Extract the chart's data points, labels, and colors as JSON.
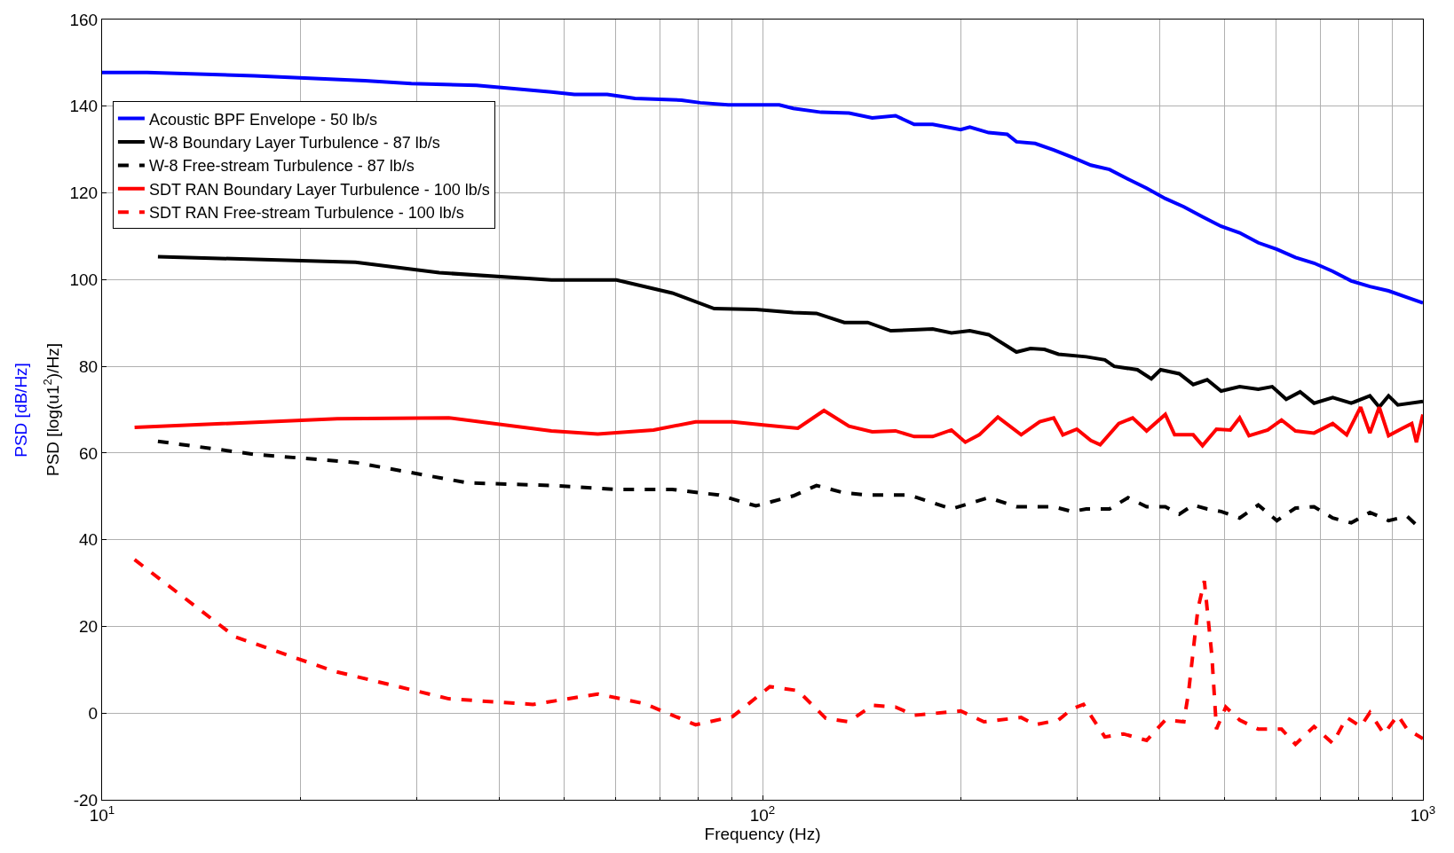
{
  "chart_data": {
    "type": "line",
    "xlabel": "Frequency (Hz)",
    "ylabel": "PSD [log(u1$^{2}$)/Hz]",
    "annotations": [
      "PSD [dB/Hz]"
    ],
    "log": "x",
    "grid": true,
    "legend": "top left",
    "marker": "none",
    "xlim": [
      10,
      1000
    ],
    "xticks": [
      {
        "value": 10,
        "label": "10$^{1}$"
      },
      {
        "value": 100,
        "label": "10$^{2}$"
      },
      {
        "value": 1000,
        "label": "10$^{3}$"
      }
    ],
    "ylim": [
      -20,
      160
    ],
    "yticks": [
      -20,
      0,
      20,
      40,
      60,
      80,
      100,
      120,
      140,
      160
    ],
    "series": [
      {
        "name": "Acoustic BPF Envelope - 50 lb/s",
        "color": "#0000ff",
        "line_style": "solid",
        "x": [
          10,
          11.7,
          17,
          25,
          29.4,
          36.9,
          47.9,
          51.9,
          58.2,
          64.1,
          75.4,
          80.5,
          88.7,
          106,
          111.3,
          122.7,
          135.2,
          146.6,
          159,
          169.7,
          181,
          199.5,
          206,
          220,
          234.7,
          242.4,
          258.7,
          276,
          294.4,
          314.2,
          335.3,
          357.7,
          381.6,
          407.3,
          434.5,
          463.7,
          494.8,
          527.8,
          563.3,
          601,
          641.2,
          684.2,
          730.2,
          778.9,
          831.2,
          887.1,
          946.2,
          1000
        ],
        "values": [
          147.8,
          147.8,
          147,
          145.9,
          145.2,
          144.8,
          143.3,
          142.7,
          142.7,
          141.8,
          141.4,
          140.8,
          140.3,
          140.3,
          139.5,
          138.6,
          138.4,
          137.3,
          137.8,
          135.8,
          135.8,
          134.6,
          135.2,
          133.9,
          133.5,
          131.8,
          131.4,
          129.9,
          128.2,
          126.4,
          125.4,
          123.2,
          121.1,
          118.7,
          116.8,
          114.5,
          112.3,
          110.8,
          108.5,
          107,
          105.1,
          103.8,
          101.9,
          99.7,
          98.4,
          97.4,
          95.9,
          94.6
        ]
      },
      {
        "name": "W-8 Boundary Layer Turbulence - 87 lb/s",
        "color": "#000000",
        "line_style": "solid",
        "x": [
          12.15,
          24.2,
          32.4,
          47.9,
          60.1,
          73,
          84.5,
          97.7,
          111.3,
          120.7,
          133,
          144.3,
          156.4,
          181,
          193.2,
          206,
          220,
          242.4,
          254.5,
          267.3,
          280.6,
          309.2,
          329.9,
          340.8,
          369.5,
          387.9,
          400.7,
          427.6,
          448.9,
          471.3,
          494.8,
          527.8,
          563.3,
          591.3,
          620.8,
          651.7,
          684.2,
          730.2,
          778.9,
          831.2,
          858.7,
          887.1,
          916.2,
          1000
        ],
        "values": [
          105.3,
          104,
          101.6,
          99.9,
          99.9,
          96.9,
          93.3,
          93.1,
          92.4,
          92.2,
          90.1,
          90.1,
          88.2,
          88.6,
          87.7,
          88.2,
          87.3,
          83.3,
          84.1,
          83.9,
          82.8,
          82.2,
          81.5,
          80,
          79.2,
          77.1,
          79.2,
          78.3,
          75.8,
          76.9,
          74.3,
          75.3,
          74.7,
          75.3,
          72.4,
          74.1,
          71.5,
          72.8,
          71.5,
          73.2,
          70.6,
          73.2,
          71.1,
          71.9
        ]
      },
      {
        "name": "W-8 Free-stream Turbulence - 87 lb/s",
        "color": "#000000",
        "line_style": "dashed",
        "x": [
          12.15,
          17,
          24.2,
          35.8,
          47.9,
          60.1,
          73,
          85.9,
          97.7,
          111.3,
          120.7,
          133,
          144.3,
          167,
          193.2,
          220,
          242.4,
          276,
          294.4,
          309.2,
          335.3,
          357.7,
          381.6,
          407.3,
          427.6,
          448.9,
          471.3,
          494.8,
          527.8,
          563.3,
          601,
          641.2,
          684.2,
          730.2,
          778.9,
          831.2,
          887.1,
          946.2,
          1000
        ],
        "values": [
          62.7,
          59.7,
          57.8,
          53.1,
          52.5,
          51.6,
          51.6,
          50.3,
          47.8,
          50.1,
          52.5,
          50.8,
          50.3,
          50.3,
          47.1,
          49.7,
          47.6,
          47.6,
          46.5,
          47.1,
          47.1,
          49.7,
          47.6,
          47.6,
          45.9,
          48,
          47.1,
          46.5,
          45,
          48,
          44.4,
          47.3,
          47.6,
          45,
          43.9,
          46.3,
          44.4,
          45.4,
          42
        ]
      },
      {
        "name": "SDT RAN Boundary Layer Turbulence - 100 lb/s",
        "color": "#ff0000",
        "line_style": "solid",
        "x": [
          11.2,
          22.7,
          33.5,
          47.9,
          56.3,
          68.4,
          79.2,
          90.1,
          101,
          113.1,
          123.9,
          135.2,
          146.6,
          159,
          169.7,
          181,
          193.2,
          202.8,
          212.9,
          227.2,
          246.4,
          262.9,
          276,
          285,
          299.2,
          314.2,
          324.6,
          346.3,
          363.5,
          381.6,
          407.3,
          420.7,
          448.9,
          463.7,
          486.8,
          510.9,
          527.8,
          545.3,
          582.1,
          610.8,
          641.2,
          684.2,
          730.2,
          766.5,
          804.7,
          831.2,
          858.7,
          887.1,
          931.1,
          961.8,
          977.5,
          1000
        ],
        "values": [
          65.9,
          67.9,
          68.1,
          65.1,
          64.4,
          65.3,
          67.2,
          67.2,
          66.4,
          65.7,
          69.8,
          66.2,
          64.9,
          65.1,
          63.8,
          63.8,
          65.3,
          62.5,
          64.2,
          68.3,
          64.2,
          67.2,
          68.1,
          64.2,
          65.5,
          62.9,
          61.9,
          66.8,
          68.1,
          65.1,
          68.9,
          64.2,
          64.2,
          61.7,
          65.5,
          65.3,
          68.1,
          64,
          65.3,
          67.6,
          65.1,
          64.6,
          66.8,
          64.2,
          70.6,
          64.6,
          70.6,
          64,
          65.7,
          66.8,
          62.5,
          68.9
        ]
      },
      {
        "name": "SDT RAN Free-stream Turbulence - 100 lb/s",
        "color": "#ff0000",
        "line_style": "dashed",
        "x": [
          11.2,
          15.9,
          22.4,
          33.5,
          44.9,
          56.3,
          66.2,
          79.2,
          90.1,
          102.6,
          113.1,
          124.7,
          135.2,
          146.6,
          159,
          169.7,
          199.5,
          216.4,
          246.4,
          258.7,
          280.6,
          294.4,
          306.2,
          329.9,
          352,
          381.6,
          407.3,
          434.5,
          441.7,
          456.3,
          466.7,
          479,
          486.8,
          502.9,
          527.8,
          563.3,
          610.8,
          641.2,
          684.2,
          730.2,
          766.5,
          804.7,
          831.2,
          872.8,
          916.2,
          946.2,
          1000
        ],
        "values": [
          35.4,
          17.6,
          9.7,
          3.3,
          2,
          4.4,
          2.2,
          -2.7,
          -0.8,
          6.1,
          5.2,
          -1.2,
          -2,
          1.8,
          1.4,
          -0.5,
          0.5,
          -2,
          -1,
          -2.7,
          -1.6,
          1,
          2,
          -5.5,
          -4.8,
          -6.3,
          -1.6,
          -2,
          4.8,
          24,
          30.5,
          13.4,
          -3.7,
          1.4,
          -1.6,
          -3.7,
          -3.7,
          -7.2,
          -3.1,
          -7,
          -1,
          -3.1,
          0.1,
          -4.8,
          -0.5,
          -3.7,
          -5.9
        ]
      }
    ]
  }
}
